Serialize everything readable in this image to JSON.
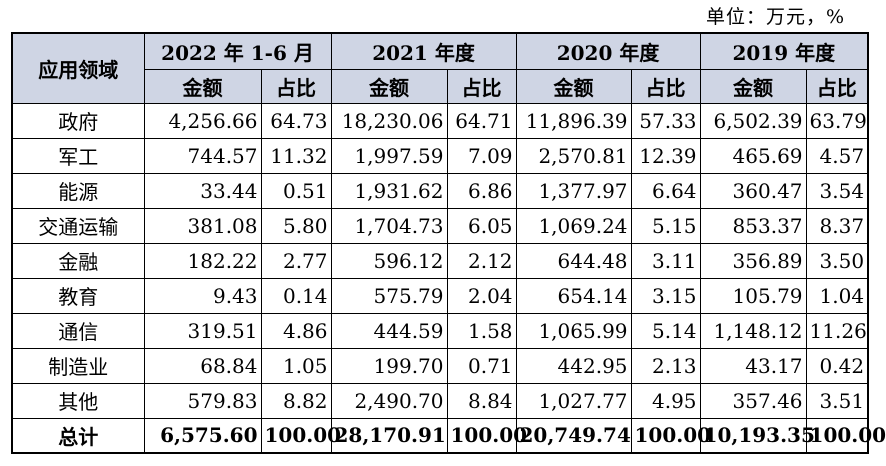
{
  "unit_label": "单位：万元，%",
  "header": {
    "field_label": "应用领域",
    "periods": [
      "2022 年 1-6 月",
      "2021 年度",
      "2020 年度",
      "2019 年度"
    ],
    "amount_label": "金额",
    "ratio_label": "占比"
  },
  "rows": [
    {
      "domain": "政府",
      "values": [
        "4,256.66",
        "64.73",
        "18,230.06",
        "64.71",
        "11,896.39",
        "57.33",
        "6,502.39",
        "63.79"
      ]
    },
    {
      "domain": "军工",
      "values": [
        "744.57",
        "11.32",
        "1,997.59",
        "7.09",
        "2,570.81",
        "12.39",
        "465.69",
        "4.57"
      ]
    },
    {
      "domain": "能源",
      "values": [
        "33.44",
        "0.51",
        "1,931.62",
        "6.86",
        "1,377.97",
        "6.64",
        "360.47",
        "3.54"
      ]
    },
    {
      "domain": "交通运输",
      "values": [
        "381.08",
        "5.80",
        "1,704.73",
        "6.05",
        "1,069.24",
        "5.15",
        "853.37",
        "8.37"
      ]
    },
    {
      "domain": "金融",
      "values": [
        "182.22",
        "2.77",
        "596.12",
        "2.12",
        "644.48",
        "3.11",
        "356.89",
        "3.50"
      ]
    },
    {
      "domain": "教育",
      "values": [
        "9.43",
        "0.14",
        "575.79",
        "2.04",
        "654.14",
        "3.15",
        "105.79",
        "1.04"
      ]
    },
    {
      "domain": "通信",
      "values": [
        "319.51",
        "4.86",
        "444.59",
        "1.58",
        "1,065.99",
        "5.14",
        "1,148.12",
        "11.26"
      ]
    },
    {
      "domain": "制造业",
      "values": [
        "68.84",
        "1.05",
        "199.70",
        "0.71",
        "442.95",
        "2.13",
        "43.17",
        "0.42"
      ]
    },
    {
      "domain": "其他",
      "values": [
        "579.83",
        "8.82",
        "2,490.70",
        "8.84",
        "1,027.77",
        "4.95",
        "357.46",
        "3.51"
      ]
    }
  ],
  "total": {
    "domain": "总计",
    "values": [
      "6,575.60",
      "100.00",
      "28,170.91",
      "100.00",
      "20,749.74",
      "100.00",
      "10,193.35",
      "100.00"
    ]
  }
}
